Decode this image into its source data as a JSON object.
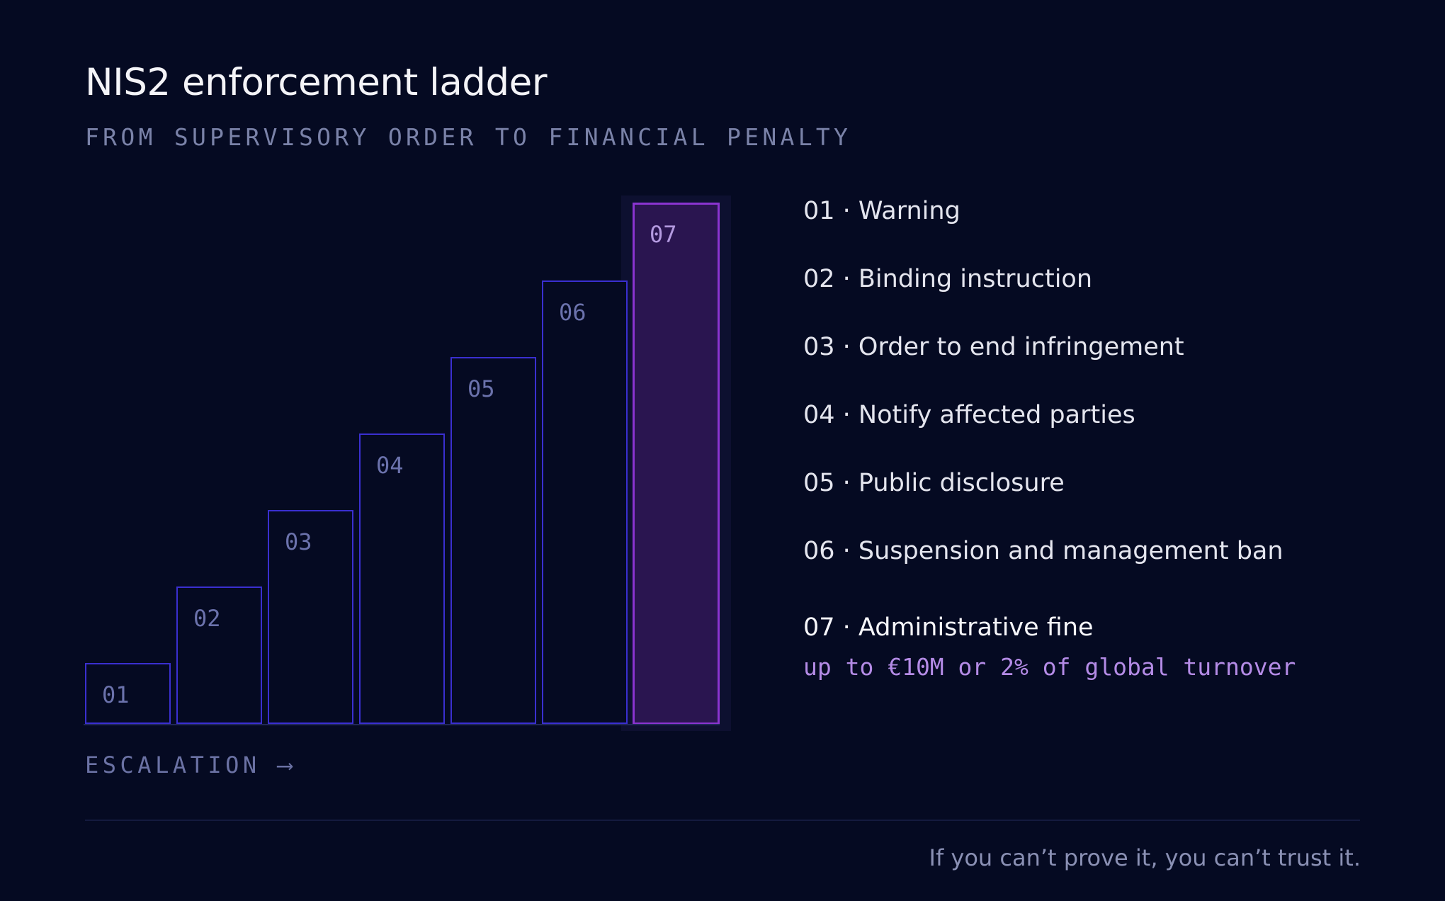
{
  "header": {
    "title": "NIS2 enforcement ladder",
    "subtitle": "FROM SUPERVISORY ORDER TO FINANCIAL PENALTY"
  },
  "ladder": {
    "steps": [
      {
        "label": "01",
        "level": 1
      },
      {
        "label": "02",
        "level": 2
      },
      {
        "label": "03",
        "level": 3
      },
      {
        "label": "04",
        "level": 4
      },
      {
        "label": "05",
        "level": 5
      },
      {
        "label": "06",
        "level": 6
      },
      {
        "label": "07",
        "level": 7
      }
    ],
    "axis_label": "ESCALATION ⟶"
  },
  "list": {
    "items": [
      {
        "text": "01 · Warning"
      },
      {
        "text": "02 · Binding instruction"
      },
      {
        "text": "03 · Order to end infringement"
      },
      {
        "text": "04 · Notify affected parties"
      },
      {
        "text": "05 · Public disclosure"
      },
      {
        "text": "06 · Suspension and management ban"
      },
      {
        "text": "07 · Administrative fine"
      }
    ],
    "fine_note": "up to €10M or 2% of global turnover"
  },
  "footer": {
    "tagline": "If you can’t prove it, you can’t trust it."
  },
  "colors": {
    "background": "#050a22",
    "step_border": "#3a2fd0",
    "top_step_border": "#8a34d0",
    "top_step_fill": "#2a1550",
    "accent_text": "#b48be6"
  }
}
